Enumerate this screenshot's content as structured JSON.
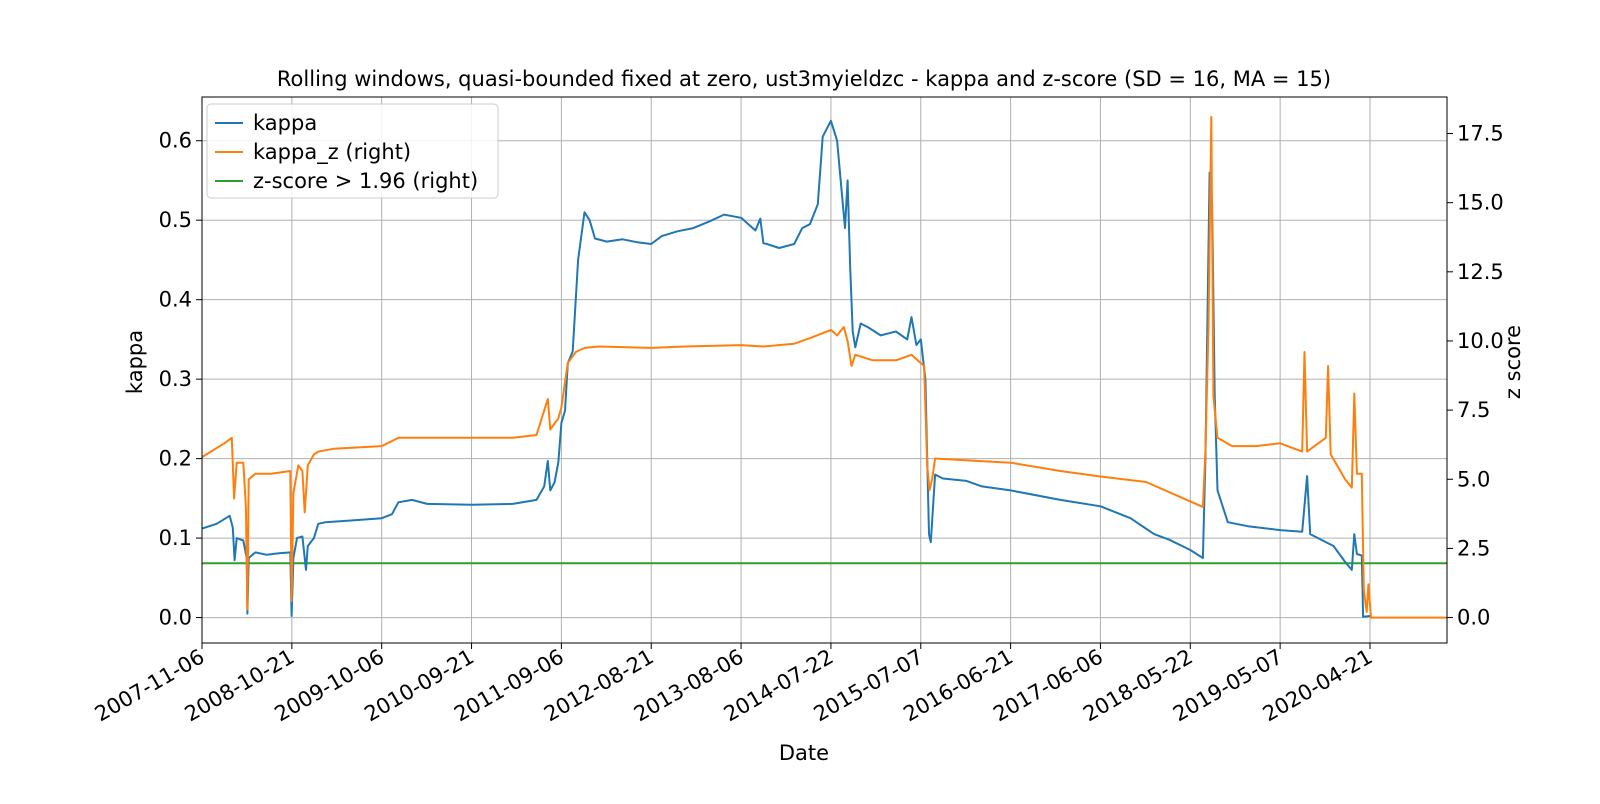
{
  "chart_data": {
    "type": "line",
    "title": "Rolling windows, quasi-bounded fixed at zero, ust3myieldzc - kappa and z-score (SD = 16, MA = 15)",
    "xlabel": "Date",
    "ylabel_left": "kappa",
    "ylabel_right": "z score",
    "x_ticks": [
      "2007-11-06",
      "2008-10-21",
      "2009-10-06",
      "2010-09-21",
      "2011-09-06",
      "2012-08-21",
      "2013-08-06",
      "2014-07-22",
      "2015-07-07",
      "2016-06-21",
      "2017-06-06",
      "2018-05-22",
      "2019-05-07",
      "2020-04-21"
    ],
    "xlim": [
      "2007-11-06",
      "2021-02-15"
    ],
    "ylim_left": [
      -0.032,
      0.655
    ],
    "ylim_right": [
      -0.92,
      18.82
    ],
    "y_ticks_left": [
      0.0,
      0.1,
      0.2,
      0.3,
      0.4,
      0.5,
      0.6
    ],
    "y_tick_labels_left": [
      "0.0",
      "0.1",
      "0.2",
      "0.3",
      "0.4",
      "0.5",
      "0.6"
    ],
    "y_ticks_right": [
      0.0,
      2.5,
      5.0,
      7.5,
      10.0,
      12.5,
      15.0,
      17.5
    ],
    "y_tick_labels_right": [
      "0.0",
      "2.5",
      "5.0",
      "7.5",
      "10.0",
      "12.5",
      "15.0",
      "17.5"
    ],
    "grid": true,
    "legend_position": "top-left",
    "series": [
      {
        "name": "kappa",
        "axis": "left",
        "color": "#1f77b4",
        "points": [
          [
            "2007-11-06",
            0.112
          ],
          [
            "2008-01-02",
            0.118
          ],
          [
            "2008-02-22",
            0.128
          ],
          [
            "2008-03-05",
            0.113
          ],
          [
            "2008-03-12",
            0.072
          ],
          [
            "2008-03-20",
            0.1
          ],
          [
            "2008-04-15",
            0.097
          ],
          [
            "2008-04-28",
            0.075
          ],
          [
            "2008-05-01",
            0.005
          ],
          [
            "2008-05-06",
            0.075
          ],
          [
            "2008-06-01",
            0.082
          ],
          [
            "2008-07-15",
            0.079
          ],
          [
            "2008-09-01",
            0.081
          ],
          [
            "2008-10-15",
            0.082
          ],
          [
            "2008-10-20",
            0.002
          ],
          [
            "2008-10-27",
            0.075
          ],
          [
            "2008-11-10",
            0.1
          ],
          [
            "2008-12-01",
            0.102
          ],
          [
            "2008-12-15",
            0.06
          ],
          [
            "2008-12-22",
            0.09
          ],
          [
            "2009-01-15",
            0.1
          ],
          [
            "2009-02-01",
            0.118
          ],
          [
            "2009-03-01",
            0.12
          ],
          [
            "2009-06-01",
            0.122
          ],
          [
            "2009-10-06",
            0.125
          ],
          [
            "2009-11-15",
            0.13
          ],
          [
            "2009-12-10",
            0.145
          ],
          [
            "2010-02-01",
            0.148
          ],
          [
            "2010-04-01",
            0.143
          ],
          [
            "2010-09-21",
            0.142
          ],
          [
            "2011-03-01",
            0.143
          ],
          [
            "2011-06-01",
            0.148
          ],
          [
            "2011-07-01",
            0.165
          ],
          [
            "2011-07-15",
            0.197
          ],
          [
            "2011-07-25",
            0.16
          ],
          [
            "2011-08-10",
            0.17
          ],
          [
            "2011-08-25",
            0.195
          ],
          [
            "2011-09-06",
            0.245
          ],
          [
            "2011-09-20",
            0.26
          ],
          [
            "2011-10-01",
            0.32
          ],
          [
            "2011-10-20",
            0.335
          ],
          [
            "2011-11-10",
            0.45
          ],
          [
            "2011-12-05",
            0.51
          ],
          [
            "2011-12-25",
            0.5
          ],
          [
            "2012-01-15",
            0.477
          ],
          [
            "2012-03-01",
            0.473
          ],
          [
            "2012-05-01",
            0.476
          ],
          [
            "2012-07-01",
            0.472
          ],
          [
            "2012-08-21",
            0.47
          ],
          [
            "2012-10-01",
            0.48
          ],
          [
            "2012-12-01",
            0.486
          ],
          [
            "2013-02-01",
            0.49
          ],
          [
            "2013-04-01",
            0.498
          ],
          [
            "2013-06-01",
            0.507
          ],
          [
            "2013-08-06",
            0.503
          ],
          [
            "2013-10-01",
            0.487
          ],
          [
            "2013-10-20",
            0.502
          ],
          [
            "2013-11-01",
            0.471
          ],
          [
            "2013-11-15",
            0.47
          ],
          [
            "2014-01-01",
            0.465
          ],
          [
            "2014-03-01",
            0.47
          ],
          [
            "2014-04-01",
            0.49
          ],
          [
            "2014-05-01",
            0.495
          ],
          [
            "2014-06-01",
            0.52
          ],
          [
            "2014-06-20",
            0.605
          ],
          [
            "2014-07-22",
            0.625
          ],
          [
            "2014-08-15",
            0.6
          ],
          [
            "2014-09-01",
            0.54
          ],
          [
            "2014-09-15",
            0.49
          ],
          [
            "2014-09-25",
            0.55
          ],
          [
            "2014-10-05",
            0.44
          ],
          [
            "2014-10-15",
            0.36
          ],
          [
            "2014-10-25",
            0.34
          ],
          [
            "2014-11-15",
            0.37
          ],
          [
            "2014-12-15",
            0.365
          ],
          [
            "2015-02-01",
            0.355
          ],
          [
            "2015-04-01",
            0.36
          ],
          [
            "2015-05-15",
            0.35
          ],
          [
            "2015-06-01",
            0.378
          ],
          [
            "2015-06-20",
            0.343
          ],
          [
            "2015-07-07",
            0.35
          ],
          [
            "2015-07-25",
            0.3
          ],
          [
            "2015-08-01",
            0.2
          ],
          [
            "2015-08-08",
            0.105
          ],
          [
            "2015-08-15",
            0.095
          ],
          [
            "2015-09-01",
            0.18
          ],
          [
            "2015-10-01",
            0.175
          ],
          [
            "2016-01-01",
            0.172
          ],
          [
            "2016-03-01",
            0.165
          ],
          [
            "2016-06-21",
            0.16
          ],
          [
            "2017-01-01",
            0.148
          ],
          [
            "2017-06-06",
            0.14
          ],
          [
            "2017-10-01",
            0.125
          ],
          [
            "2018-01-01",
            0.105
          ],
          [
            "2018-03-01",
            0.098
          ],
          [
            "2018-05-22",
            0.085
          ],
          [
            "2018-07-10",
            0.075
          ],
          [
            "2018-07-20",
            0.2
          ],
          [
            "2018-08-05",
            0.56
          ],
          [
            "2018-08-15",
            0.52
          ],
          [
            "2018-08-25",
            0.28
          ],
          [
            "2018-09-05",
            0.16
          ],
          [
            "2018-10-15",
            0.12
          ],
          [
            "2019-01-01",
            0.115
          ],
          [
            "2019-05-07",
            0.11
          ],
          [
            "2019-08-01",
            0.108
          ],
          [
            "2019-08-20",
            0.178
          ],
          [
            "2019-09-01",
            0.105
          ],
          [
            "2019-12-01",
            0.09
          ],
          [
            "2020-01-15",
            0.07
          ],
          [
            "2020-02-10",
            0.06
          ],
          [
            "2020-02-20",
            0.105
          ],
          [
            "2020-03-01",
            0.08
          ],
          [
            "2020-03-20",
            0.078
          ],
          [
            "2020-03-25",
            0.001
          ],
          [
            "2020-04-21",
            0.002
          ]
        ]
      },
      {
        "name": "kappa_z (right)",
        "axis": "right",
        "color": "#ff7f0e",
        "points": [
          [
            "2007-11-06",
            5.8
          ],
          [
            "2008-02-01",
            6.3
          ],
          [
            "2008-03-01",
            6.5
          ],
          [
            "2008-03-10",
            4.3
          ],
          [
            "2008-03-20",
            5.6
          ],
          [
            "2008-04-15",
            5.6
          ],
          [
            "2008-04-25",
            4.0
          ],
          [
            "2008-05-01",
            0.3
          ],
          [
            "2008-05-06",
            5.0
          ],
          [
            "2008-06-01",
            5.2
          ],
          [
            "2008-08-01",
            5.2
          ],
          [
            "2008-10-15",
            5.3
          ],
          [
            "2008-10-20",
            0.6
          ],
          [
            "2008-10-27",
            4.5
          ],
          [
            "2008-11-15",
            5.5
          ],
          [
            "2008-12-01",
            5.3
          ],
          [
            "2008-12-10",
            3.8
          ],
          [
            "2008-12-22",
            5.5
          ],
          [
            "2009-01-15",
            5.9
          ],
          [
            "2009-02-01",
            6.0
          ],
          [
            "2009-04-01",
            6.1
          ],
          [
            "2009-10-06",
            6.2
          ],
          [
            "2009-12-10",
            6.5
          ],
          [
            "2010-04-01",
            6.5
          ],
          [
            "2010-09-21",
            6.5
          ],
          [
            "2011-03-01",
            6.5
          ],
          [
            "2011-06-01",
            6.6
          ],
          [
            "2011-07-15",
            7.9
          ],
          [
            "2011-07-25",
            6.8
          ],
          [
            "2011-08-25",
            7.2
          ],
          [
            "2011-09-06",
            7.6
          ],
          [
            "2011-10-01",
            9.2
          ],
          [
            "2011-11-01",
            9.6
          ],
          [
            "2011-12-05",
            9.75
          ],
          [
            "2012-02-01",
            9.8
          ],
          [
            "2012-08-21",
            9.75
          ],
          [
            "2013-01-01",
            9.8
          ],
          [
            "2013-08-06",
            9.85
          ],
          [
            "2013-11-01",
            9.8
          ],
          [
            "2014-03-01",
            9.9
          ],
          [
            "2014-05-01",
            10.1
          ],
          [
            "2014-07-22",
            10.4
          ],
          [
            "2014-08-15",
            10.2
          ],
          [
            "2014-09-10",
            10.5
          ],
          [
            "2014-09-25",
            10.0
          ],
          [
            "2014-10-10",
            9.1
          ],
          [
            "2014-10-25",
            9.5
          ],
          [
            "2015-01-01",
            9.3
          ],
          [
            "2015-04-01",
            9.3
          ],
          [
            "2015-06-01",
            9.5
          ],
          [
            "2015-07-07",
            9.2
          ],
          [
            "2015-07-20",
            9.1
          ],
          [
            "2015-08-01",
            5.5
          ],
          [
            "2015-08-10",
            4.6
          ],
          [
            "2015-08-20",
            5.0
          ],
          [
            "2015-09-01",
            5.75
          ],
          [
            "2015-12-01",
            5.7
          ],
          [
            "2016-06-21",
            5.6
          ],
          [
            "2017-01-01",
            5.3
          ],
          [
            "2017-06-06",
            5.1
          ],
          [
            "2017-12-01",
            4.9
          ],
          [
            "2018-05-22",
            4.2
          ],
          [
            "2018-07-10",
            4.0
          ],
          [
            "2018-07-20",
            6.0
          ],
          [
            "2018-08-01",
            10.5
          ],
          [
            "2018-08-12",
            18.1
          ],
          [
            "2018-08-20",
            8.0
          ],
          [
            "2018-09-05",
            6.5
          ],
          [
            "2018-11-01",
            6.2
          ],
          [
            "2019-02-01",
            6.2
          ],
          [
            "2019-05-07",
            6.3
          ],
          [
            "2019-08-01",
            6.0
          ],
          [
            "2019-08-10",
            9.6
          ],
          [
            "2019-08-20",
            6.0
          ],
          [
            "2019-11-01",
            6.5
          ],
          [
            "2019-11-10",
            9.1
          ],
          [
            "2019-11-20",
            5.9
          ],
          [
            "2020-01-15",
            5.0
          ],
          [
            "2020-02-10",
            4.7
          ],
          [
            "2020-02-20",
            8.1
          ],
          [
            "2020-03-01",
            5.2
          ],
          [
            "2020-03-20",
            5.2
          ],
          [
            "2020-03-28",
            1.0
          ],
          [
            "2020-04-08",
            0.2
          ],
          [
            "2020-04-15",
            1.2
          ],
          [
            "2020-04-25",
            0.0
          ],
          [
            "2021-02-15",
            0.0
          ]
        ]
      },
      {
        "name": "z-score > 1.96 (right)",
        "axis": "right",
        "color": "#2ca02c",
        "points": [
          [
            "2007-11-06",
            1.96
          ],
          [
            "2021-02-15",
            1.96
          ]
        ]
      }
    ]
  }
}
